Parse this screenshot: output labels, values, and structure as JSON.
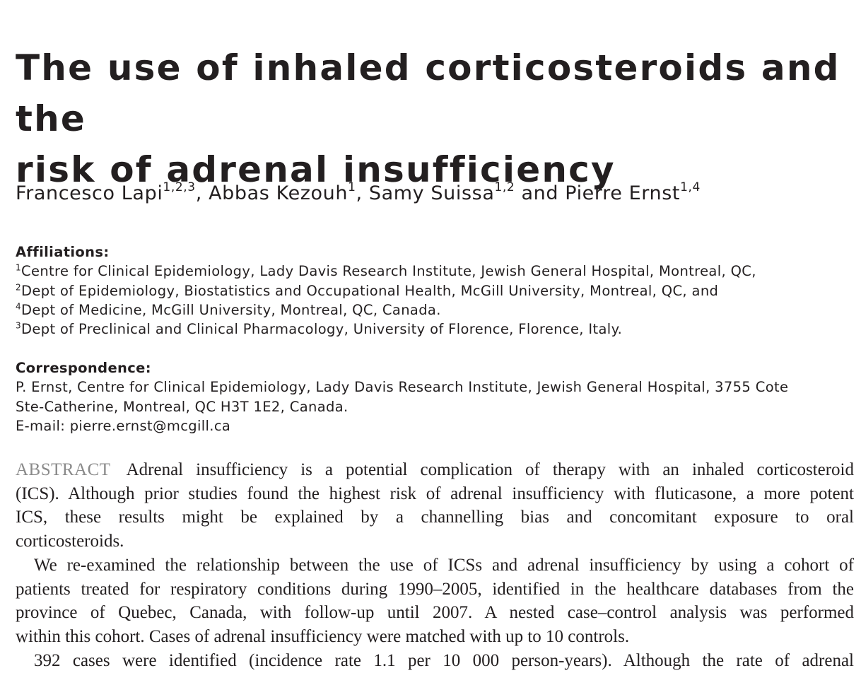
{
  "title": {
    "line1": "The use of inhaled corticosteroids and the",
    "line2": "risk of adrenal insufficiency"
  },
  "authors": [
    {
      "name": "Francesco Lapi",
      "sup": "1,2,3",
      "sep": ", "
    },
    {
      "name": "Abbas Kezouh",
      "sup": "1",
      "sep": ", "
    },
    {
      "name": "Samy Suissa",
      "sup": "1,2",
      "sep": " and "
    },
    {
      "name": "Pierre Ernst",
      "sup": "1,4",
      "sep": ""
    }
  ],
  "affiliations": {
    "label": "Affiliations:",
    "items": [
      {
        "sup": "1",
        "text": "Centre for Clinical Epidemiology, Lady Davis Research Institute, Jewish General Hospital, Montreal, QC,"
      },
      {
        "sup": "2",
        "text": "Dept of Epidemiology, Biostatistics and Occupational Health, McGill University, Montreal, QC, and"
      },
      {
        "sup": "4",
        "text": "Dept of Medicine, McGill University, Montreal, QC, Canada."
      },
      {
        "sup": "3",
        "text": "Dept of Preclinical and Clinical Pharmacology, University of Florence, Florence, Italy."
      }
    ]
  },
  "correspondence": {
    "label": "Correspondence:",
    "lines": [
      "P. Ernst, Centre for Clinical Epidemiology, Lady Davis Research Institute, Jewish General Hospital, 3755 Cote",
      "Ste-Catherine, Montreal, QC H3T 1E2, Canada.",
      "E-mail: pierre.ernst@mcgill.ca"
    ]
  },
  "abstract": {
    "label": "ABSTRACT",
    "lines": [
      "Adrenal insufficiency is a potential complication of therapy with an inhaled corticosteroid",
      "(ICS). Although prior studies found the highest risk of adrenal insufficiency with fluticasone, a more potent",
      "ICS, these results might be explained by a channelling bias and concomitant exposure to oral",
      "corticosteroids.",
      "We re-examined the relationship between the use of ICSs and adrenal insufficiency by using a cohort of",
      "patients treated for respiratory conditions during 1990–2005, identified in the healthcare databases from the",
      "province of Quebec, Canada, with follow-up until 2007. A nested case–control analysis was performed",
      "within this cohort. Cases of adrenal insufficiency were matched with up to 10 controls.",
      "392 cases were identified (incidence rate 1.1 per 10 000 person-years). Although the rate of adrenal"
    ]
  }
}
